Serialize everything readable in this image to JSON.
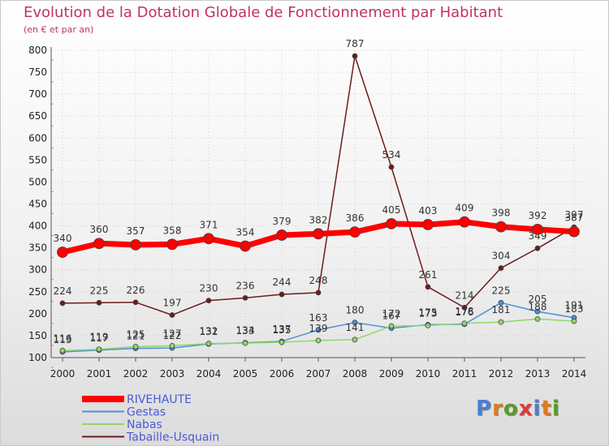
{
  "title": "Evolution de la Dotation Globale de Fonctionnement par Habitant",
  "subtitle": "(en € et par an)",
  "logo": {
    "text": "Proxiti",
    "colors": [
      "#4a7fd0",
      "#e07a1c",
      "#5a9b2e",
      "#e03c3c",
      "#4a7fd0",
      "#e07a1c",
      "#5a9b2e"
    ]
  },
  "chart_data": {
    "type": "line",
    "title": "Evolution de la Dotation Globale de Fonctionnement par Habitant",
    "subtitle": "(en € et par an)",
    "xlabel": "",
    "ylabel": "",
    "ylim": [
      100,
      800
    ],
    "yticks": [
      100,
      150,
      200,
      250,
      300,
      350,
      400,
      450,
      500,
      550,
      600,
      650,
      700,
      750,
      800
    ],
    "grid": true,
    "legend_position": "bottom-left",
    "x": [
      2000,
      2001,
      2002,
      2003,
      2004,
      2005,
      2006,
      2007,
      2008,
      2009,
      2010,
      2011,
      2012,
      2013,
      2014
    ],
    "series": [
      {
        "name": "Tabaille-Usquain",
        "color": "#6b1c1c",
        "values": [
          224,
          225,
          226,
          197,
          230,
          236,
          244,
          248,
          787,
          534,
          261,
          214,
          304,
          349,
          397
        ]
      },
      {
        "name": "Gestas",
        "color": "#4a90d9",
        "values": [
          113,
          117,
          121,
          122,
          131,
          134,
          137,
          163,
          180,
          167,
          175,
          176,
          225,
          205,
          191
        ]
      },
      {
        "name": "Nabas",
        "color": "#8fd66b",
        "values": [
          116,
          119,
          125,
          127,
          132,
          133,
          135,
          139,
          141,
          172,
          173,
          178,
          181,
          188,
          183
        ]
      },
      {
        "name": "RIVEHAUTE",
        "color": "#ff0000",
        "values": [
          340,
          360,
          357,
          358,
          371,
          354,
          379,
          382,
          386,
          405,
          403,
          409,
          398,
          392,
          387
        ]
      }
    ]
  }
}
